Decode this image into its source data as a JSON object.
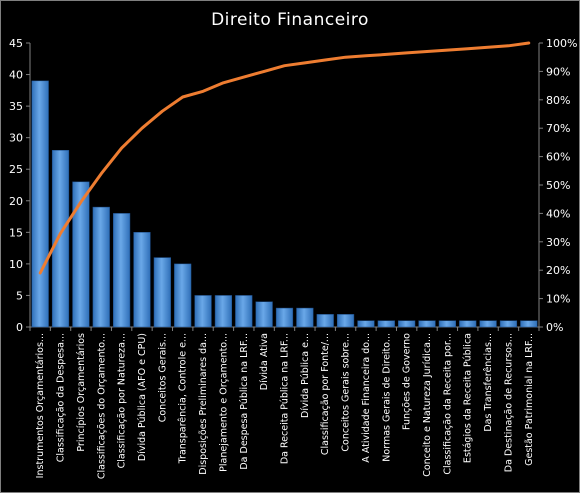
{
  "chart_data": {
    "type": "bar",
    "title": "Direito  Financeiro",
    "categories": [
      "Instrumentos Orçamentários...",
      "Classificação da Despesa...",
      "Princípios Orçamentários",
      "Classificações do Orçamento...",
      "Classificação por Natureza...",
      "Dívida Pública (AFO e CPU)",
      "Conceitos Gerais...",
      "Transparência, Controle e...",
      "Disposições Preliminares da...",
      "Planejamento e Orçamento...",
      "Da Despesa Pública na LRF...",
      "Dívida Ativa",
      "Da Receita Pública na LRF...",
      "Dívida Pública e...",
      "Classificação por Fonte/...",
      "Conceitos Gerais sobre...",
      "A Atividade Financeira do...",
      "Normas Gerais de Direito...",
      "Funções de Governo",
      "Conceito e Natureza Jurídica...",
      "Classificação da Receita por...",
      "Estágios da Receita Pública",
      "Das Transferências...",
      "Da Destinação de Recursos...",
      "Gestão Patrimonial na LRF..."
    ],
    "series": [
      {
        "type": "bar",
        "values": [
          39,
          28,
          23,
          19,
          18,
          15,
          11,
          10,
          5,
          5,
          5,
          4,
          3,
          3,
          2,
          2,
          1,
          1,
          1,
          1,
          1,
          1,
          1,
          1,
          1
        ]
      },
      {
        "type": "line",
        "axis": "secondary",
        "values": [
          0.19,
          0.33,
          0.44,
          0.54,
          0.63,
          0.7,
          0.76,
          0.81,
          0.83,
          0.86,
          0.88,
          0.9,
          0.92,
          0.93,
          0.94,
          0.95,
          0.955,
          0.96,
          0.965,
          0.97,
          0.975,
          0.98,
          0.985,
          0.99,
          1.0
        ]
      }
    ],
    "ylim": [
      0,
      45
    ],
    "yticks": [
      0,
      5,
      10,
      15,
      20,
      25,
      30,
      35,
      40,
      45
    ],
    "y2lim": [
      0,
      1
    ],
    "y2ticks": [
      "0%",
      "10%",
      "20%",
      "30%",
      "40%",
      "50%",
      "60%",
      "70%",
      "80%",
      "90%",
      "100%"
    ],
    "grid": false,
    "legend": "none",
    "colors": {
      "background": "#000000",
      "bar": "#3c82d2",
      "bar_light": "#6aa8e8",
      "line": "#ee7d31",
      "axis": "#7f7f7f",
      "text": "#ffffff"
    }
  }
}
